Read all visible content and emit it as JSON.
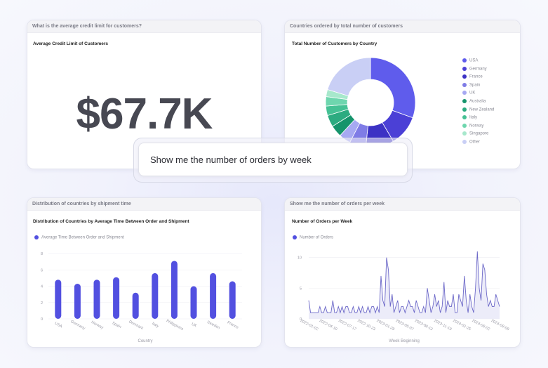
{
  "cards": {
    "kpi": {
      "header": "What is the average credit limit for customers?",
      "subtitle": "Average Credit Limit of Customers",
      "value": "$67.7K"
    },
    "donut": {
      "header": "Countries ordered by total number of customers",
      "subtitle": "Total Number of Customers by Country"
    },
    "bars": {
      "header": "Distribution of countries by shipment time",
      "subtitle": "Distribution of Countries by Average Time Between Order and Shipment",
      "legend": "Average Time Between Order and Shipment"
    },
    "line": {
      "header": "Show me the number of orders per week",
      "subtitle": "Number of Orders per Week",
      "legend": "Number of Orders"
    }
  },
  "prompt": {
    "text": "Show me the number of orders by week"
  },
  "colors": {
    "accent": "#5250e0",
    "line": "#6c68c8"
  },
  "chart_data": [
    {
      "type": "pie",
      "title": "Total Number of Customers by Country",
      "legend_position": "right",
      "categories": [
        "USA",
        "Germany",
        "France",
        "Spain",
        "UK",
        "Australia",
        "New Zealand",
        "Italy",
        "Norway",
        "Singapore",
        "Other"
      ],
      "values": [
        36,
        13,
        12,
        7,
        5,
        5,
        5,
        4,
        4,
        3,
        24
      ],
      "colors": [
        "#5f5cec",
        "#4b40d6",
        "#3c32c4",
        "#7f7ce6",
        "#a7a9f2",
        "#16946c",
        "#2cab80",
        "#45c194",
        "#6ed6ae",
        "#a7e8cc",
        "#c9cff5"
      ]
    },
    {
      "type": "bar",
      "title": "Distribution of Countries by Average Time Between Order and Shipment",
      "categories": [
        "USA",
        "Germany",
        "Norway",
        "Spain",
        "Denmark",
        "Italy",
        "Philippines",
        "UK",
        "Sweden",
        "France"
      ],
      "values": [
        4.8,
        4.3,
        4.8,
        5.1,
        3.2,
        5.6,
        7.1,
        4.0,
        5.6,
        4.6
      ],
      "xlabel": "Country",
      "ylabel": "",
      "ylim": [
        0,
        8
      ],
      "yticks": [
        0,
        2,
        4,
        6,
        8
      ],
      "series": [
        {
          "name": "Average Time Between Order and Shipment",
          "values": [
            4.8,
            4.3,
            4.8,
            5.1,
            3.2,
            5.6,
            7.1,
            4.0,
            5.6,
            4.6
          ]
        }
      ]
    },
    {
      "type": "area",
      "title": "Number of Orders per Week",
      "xlabel": "Week Beginning",
      "ylim": [
        0,
        11
      ],
      "yticks": [
        0,
        5,
        10
      ],
      "xticks": [
        "2022-01-02",
        "2022-04-10",
        "2022-07-17",
        "2022-10-23",
        "2023-01-29",
        "2023-05-07",
        "2023-08-13",
        "2023-11-19",
        "2024-02-25",
        "2024-06-02",
        "2024-09-08"
      ],
      "series": [
        {
          "name": "Number of Orders",
          "values": [
            3,
            1,
            1,
            1,
            1,
            1,
            2,
            1,
            1,
            2,
            1,
            1,
            1,
            3,
            1,
            1,
            2,
            1,
            2,
            1,
            2,
            2,
            1,
            1,
            2,
            1,
            1,
            2,
            1,
            2,
            1,
            1,
            2,
            1,
            2,
            2,
            1,
            2,
            1,
            7,
            3,
            2,
            10,
            8,
            2,
            4,
            1,
            2,
            3,
            1,
            2,
            2,
            1,
            2,
            3,
            2,
            2,
            1,
            3,
            2,
            1,
            1,
            2,
            1,
            5,
            3,
            1,
            2,
            4,
            2,
            3,
            1,
            2,
            6,
            1,
            3,
            2,
            2,
            4,
            1,
            1,
            4,
            3,
            2,
            7,
            3,
            1,
            4,
            2,
            1,
            5,
            11,
            5,
            3,
            9,
            8,
            4,
            2,
            3,
            2,
            2,
            4,
            3,
            2
          ]
        }
      ]
    }
  ]
}
